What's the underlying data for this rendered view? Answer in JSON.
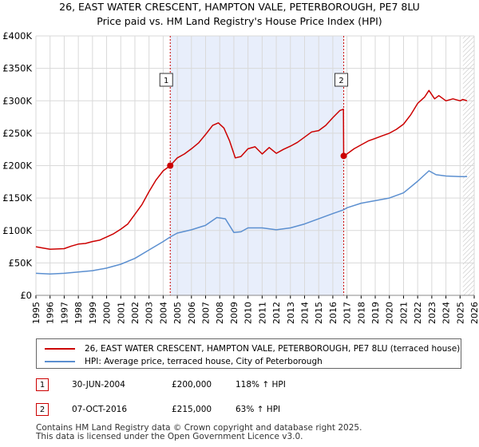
{
  "title": {
    "line1": "26, EAST WATER CRESCENT, HAMPTON VALE, PETERBOROUGH, PE7 8LU",
    "line2": "Price paid vs. HM Land Registry's House Price Index (HPI)"
  },
  "colors": {
    "property": "#cc0000",
    "hpi": "#5b8fd0",
    "shade": "#e8eefb",
    "grid": "#d9d9d9"
  },
  "chart_data": {
    "type": "line",
    "title": "26, EAST WATER CRESCENT, HAMPTON VALE, PETERBOROUGH, PE7 8LU — Price paid vs. HM Land Registry's House Price Index (HPI)",
    "xlim": [
      1995,
      2026
    ],
    "ylim": [
      0,
      400000
    ],
    "x_ticks": [
      "1995",
      "1996",
      "1997",
      "1998",
      "1999",
      "2000",
      "2001",
      "2002",
      "2003",
      "2004",
      "2005",
      "2006",
      "2007",
      "2008",
      "2009",
      "2010",
      "2011",
      "2012",
      "2013",
      "2014",
      "2015",
      "2016",
      "2017",
      "2018",
      "2019",
      "2020",
      "2021",
      "2022",
      "2023",
      "2024",
      "2025",
      "2026"
    ],
    "y_ticks": [
      {
        "value": 0,
        "label": "£0"
      },
      {
        "value": 50000,
        "label": "£50K"
      },
      {
        "value": 100000,
        "label": "£100K"
      },
      {
        "value": 150000,
        "label": "£150K"
      },
      {
        "value": 200000,
        "label": "£200K"
      },
      {
        "value": 250000,
        "label": "£250K"
      },
      {
        "value": 300000,
        "label": "£300K"
      },
      {
        "value": 350000,
        "label": "£350K"
      },
      {
        "value": 400000,
        "label": "£400K"
      }
    ],
    "shaded_region": [
      2004.5,
      2016.77
    ],
    "projection_start": 2025.2,
    "series": [
      {
        "name": "26, EAST WATER CRESCENT, HAMPTON VALE, PETERBOROUGH, PE7 8LU (terraced house)",
        "color": "#cc0000",
        "points": [
          [
            1995,
            75000
          ],
          [
            1995.5,
            73000
          ],
          [
            1996,
            71000
          ],
          [
            1996.5,
            71500
          ],
          [
            1997,
            72000
          ],
          [
            1997.5,
            76000
          ],
          [
            1998,
            79000
          ],
          [
            1998.5,
            80000
          ],
          [
            1999,
            83000
          ],
          [
            1999.5,
            85000
          ],
          [
            2000,
            90000
          ],
          [
            2000.5,
            95000
          ],
          [
            2001,
            102000
          ],
          [
            2001.5,
            110000
          ],
          [
            2002,
            125000
          ],
          [
            2002.5,
            140000
          ],
          [
            2003,
            160000
          ],
          [
            2003.5,
            178000
          ],
          [
            2004,
            192000
          ],
          [
            2004.5,
            200000
          ],
          [
            2005,
            212000
          ],
          [
            2005.5,
            218000
          ],
          [
            2006,
            226000
          ],
          [
            2006.5,
            235000
          ],
          [
            2007,
            248000
          ],
          [
            2007.5,
            262000
          ],
          [
            2007.9,
            266000
          ],
          [
            2008.3,
            258000
          ],
          [
            2008.7,
            238000
          ],
          [
            2009.1,
            212000
          ],
          [
            2009.5,
            214000
          ],
          [
            2010,
            226000
          ],
          [
            2010.5,
            229000
          ],
          [
            2011,
            218000
          ],
          [
            2011.5,
            228000
          ],
          [
            2012,
            219000
          ],
          [
            2012.5,
            225000
          ],
          [
            2013,
            230000
          ],
          [
            2013.5,
            236000
          ],
          [
            2014,
            244000
          ],
          [
            2014.5,
            252000
          ],
          [
            2015,
            254000
          ],
          [
            2015.5,
            262000
          ],
          [
            2016,
            274000
          ],
          [
            2016.5,
            285000
          ],
          [
            2016.75,
            287000
          ],
          [
            2016.77,
            215000
          ],
          [
            2017,
            218000
          ],
          [
            2017.5,
            226000
          ],
          [
            2018,
            232000
          ],
          [
            2018.5,
            238000
          ],
          [
            2019,
            242000
          ],
          [
            2019.5,
            246000
          ],
          [
            2020,
            250000
          ],
          [
            2020.5,
            256000
          ],
          [
            2021,
            264000
          ],
          [
            2021.5,
            278000
          ],
          [
            2022,
            296000
          ],
          [
            2022.5,
            306000
          ],
          [
            2022.8,
            316000
          ],
          [
            2023.2,
            303000
          ],
          [
            2023.5,
            308000
          ],
          [
            2024,
            300000
          ],
          [
            2024.5,
            303000
          ],
          [
            2025,
            300000
          ],
          [
            2025.2,
            302000
          ],
          [
            2025.5,
            300000
          ]
        ]
      },
      {
        "name": "HPI: Average price, terraced house, City of Peterborough",
        "color": "#5b8fd0",
        "points": [
          [
            1995,
            34000
          ],
          [
            1996,
            33000
          ],
          [
            1997,
            34000
          ],
          [
            1998,
            36000
          ],
          [
            1999,
            38000
          ],
          [
            2000,
            42000
          ],
          [
            2001,
            48000
          ],
          [
            2002,
            57000
          ],
          [
            2003,
            70000
          ],
          [
            2004,
            83000
          ],
          [
            2004.5,
            90000
          ],
          [
            2005,
            96000
          ],
          [
            2006,
            101000
          ],
          [
            2007,
            108000
          ],
          [
            2007.8,
            120000
          ],
          [
            2008.4,
            118000
          ],
          [
            2009,
            97000
          ],
          [
            2009.5,
            98000
          ],
          [
            2010,
            104000
          ],
          [
            2011,
            104000
          ],
          [
            2012,
            101000
          ],
          [
            2013,
            104000
          ],
          [
            2014,
            110000
          ],
          [
            2015,
            118000
          ],
          [
            2016,
            126000
          ],
          [
            2016.77,
            132000
          ],
          [
            2017,
            135000
          ],
          [
            2018,
            142000
          ],
          [
            2019,
            146000
          ],
          [
            2020,
            150000
          ],
          [
            2021,
            158000
          ],
          [
            2022,
            176000
          ],
          [
            2022.8,
            192000
          ],
          [
            2023.3,
            186000
          ],
          [
            2024,
            184000
          ],
          [
            2025,
            183000
          ],
          [
            2025.2,
            183000
          ],
          [
            2025.5,
            183000
          ]
        ]
      }
    ],
    "transactions": [
      {
        "marker": "1",
        "year": 2004.5,
        "price": 200000,
        "date": "30-JUN-2004",
        "price_label": "£200,000",
        "hpi_label": "118% ↑ HPI"
      },
      {
        "marker": "2",
        "year": 2016.77,
        "price": 215000,
        "date": "07-OCT-2016",
        "price_label": "£215,000",
        "hpi_label": "63% ↑ HPI"
      }
    ]
  },
  "legend": {
    "property_label": "26, EAST WATER CRESCENT, HAMPTON VALE, PETERBOROUGH, PE7 8LU (terraced house)",
    "hpi_label": "HPI: Average price, terraced house, City of Peterborough"
  },
  "footer": {
    "line1": "Contains HM Land Registry data © Crown copyright and database right 2025.",
    "line2": "This data is licensed under the Open Government Licence v3.0."
  }
}
